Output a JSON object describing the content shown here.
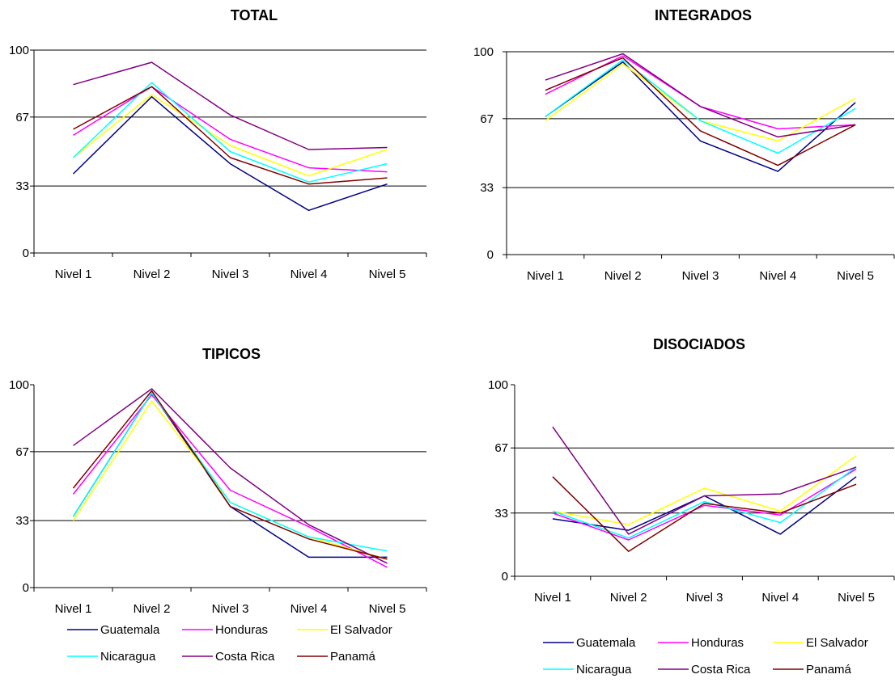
{
  "legend": [
    "Guatemala",
    "Honduras",
    "El Salvador",
    "Nicaragua",
    "Costa Rica",
    "Panamá"
  ],
  "series_colors": {
    "Guatemala": "#000080",
    "Honduras": "#ff00ff",
    "El Salvador": "#ffff00",
    "Nicaragua": "#00ffff",
    "Costa Rica": "#800080",
    "Panamá": "#800000"
  },
  "chart_data": [
    {
      "type": "line",
      "title": "TOTAL",
      "categories": [
        "Nivel 1",
        "Nivel 2",
        "Nivel 3",
        "Nivel 4",
        "Nivel 5"
      ],
      "ylim": [
        0,
        100
      ],
      "yticks": [
        0,
        33,
        67,
        100
      ],
      "grid": "horizontal",
      "series": [
        {
          "name": "Guatemala",
          "values": [
            39,
            77,
            44,
            21,
            34
          ]
        },
        {
          "name": "Honduras",
          "values": [
            58,
            82,
            56,
            42,
            40
          ]
        },
        {
          "name": "El Salvador",
          "values": [
            47,
            78,
            53,
            38,
            51
          ]
        },
        {
          "name": "Nicaragua",
          "values": [
            47,
            84,
            50,
            35,
            44
          ]
        },
        {
          "name": "Costa Rica",
          "values": [
            83,
            94,
            68,
            51,
            52
          ]
        },
        {
          "name": "Panamá",
          "values": [
            61,
            82,
            47,
            34,
            37
          ]
        }
      ]
    },
    {
      "type": "line",
      "title": "INTEGRADOS",
      "categories": [
        "Nivel 1",
        "Nivel 2",
        "Nivel 3",
        "Nivel 4",
        "Nivel 5"
      ],
      "ylim": [
        0,
        100
      ],
      "yticks": [
        0,
        33,
        67,
        100
      ],
      "grid": "horizontal",
      "series": [
        {
          "name": "Guatemala",
          "values": [
            68,
            95,
            56,
            41,
            75
          ]
        },
        {
          "name": "Honduras",
          "values": [
            79,
            98,
            73,
            62,
            64
          ]
        },
        {
          "name": "El Salvador",
          "values": [
            66,
            94,
            66,
            56,
            77
          ]
        },
        {
          "name": "Nicaragua",
          "values": [
            68,
            96,
            66,
            50,
            72
          ]
        },
        {
          "name": "Costa Rica",
          "values": [
            86,
            99,
            73,
            58,
            64
          ]
        },
        {
          "name": "Panamá",
          "values": [
            81,
            97,
            61,
            44,
            64
          ]
        }
      ]
    },
    {
      "type": "line",
      "title": "TIPICOS",
      "categories": [
        "Nivel 1",
        "Nivel 2",
        "Nivel 3",
        "Nivel 4",
        "Nivel 5"
      ],
      "ylim": [
        0,
        100
      ],
      "yticks": [
        0,
        33,
        67,
        100
      ],
      "grid": "horizontal",
      "series": [
        {
          "name": "Guatemala",
          "values": [
            35,
            96,
            40,
            15,
            15
          ]
        },
        {
          "name": "Honduras",
          "values": [
            46,
            95,
            48,
            30,
            10
          ]
        },
        {
          "name": "El Salvador",
          "values": [
            33,
            92,
            42,
            25,
            14
          ]
        },
        {
          "name": "Nicaragua",
          "values": [
            35,
            96,
            42,
            25,
            18
          ]
        },
        {
          "name": "Costa Rica",
          "values": [
            70,
            98,
            59,
            31,
            12
          ]
        },
        {
          "name": "Panamá",
          "values": [
            49,
            97,
            40,
            24,
            14
          ]
        }
      ]
    },
    {
      "type": "line",
      "title": "DISOCIADOS",
      "categories": [
        "Nivel 1",
        "Nivel 2",
        "Nivel 3",
        "Nivel 4",
        "Nivel 5"
      ],
      "ylim": [
        0,
        100
      ],
      "yticks": [
        0,
        33,
        67,
        100
      ],
      "grid": "horizontal",
      "series": [
        {
          "name": "Guatemala",
          "values": [
            30,
            24,
            42,
            22,
            52
          ]
        },
        {
          "name": "Honduras",
          "values": [
            33,
            19,
            37,
            32,
            56
          ]
        },
        {
          "name": "El Salvador",
          "values": [
            34,
            27,
            46,
            34,
            63
          ]
        },
        {
          "name": "Nicaragua",
          "values": [
            34,
            20,
            39,
            28,
            57
          ]
        },
        {
          "name": "Costa Rica",
          "values": [
            78,
            22,
            42,
            43,
            57
          ]
        },
        {
          "name": "Panamá",
          "values": [
            52,
            13,
            38,
            33,
            48
          ]
        }
      ]
    }
  ]
}
